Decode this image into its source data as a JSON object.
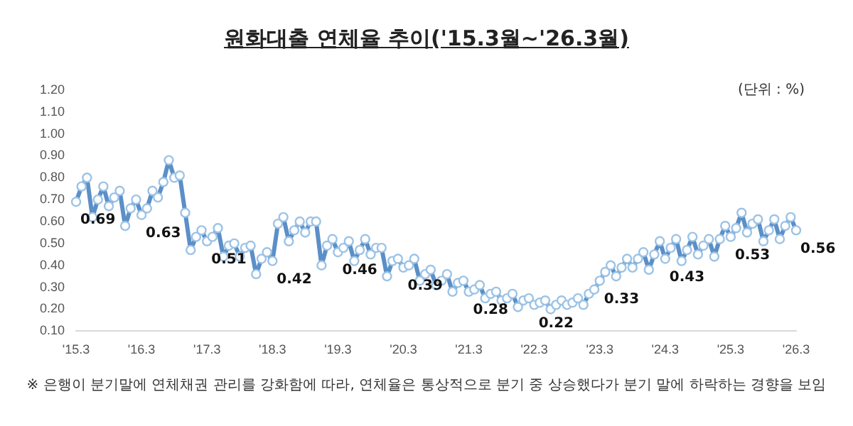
{
  "chart_data": {
    "type": "line",
    "title": "원화대출 연체율 추이('15.3월~'26.3월)",
    "annotations": [
      "(단위 : %)",
      "※ 은행이 분기말에 연체채권 관리를 강화함에 따라, 연체율은 통상적으로 분기 중 상승했다가 분기 말에 하락하는 경향을 보임"
    ],
    "categories": [
      "'15.3",
      null,
      null,
      null,
      null,
      null,
      null,
      null,
      null,
      null,
      null,
      null,
      "'16.3",
      null,
      null,
      null,
      null,
      null,
      null,
      null,
      null,
      null,
      null,
      null,
      "'17.3",
      null,
      null,
      null,
      null,
      null,
      null,
      null,
      null,
      null,
      null,
      null,
      "'18.3",
      null,
      null,
      null,
      null,
      null,
      null,
      null,
      null,
      null,
      null,
      null,
      "'19.3",
      null,
      null,
      null,
      null,
      null,
      null,
      null,
      null,
      null,
      null,
      null,
      "'20.3",
      null,
      null,
      null,
      null,
      null,
      null,
      null,
      null,
      null,
      null,
      null,
      "'21.3",
      null,
      null,
      null,
      null,
      null,
      null,
      null,
      null,
      null,
      null,
      null,
      "'22.3",
      null,
      null,
      null,
      null,
      null,
      null,
      null,
      null,
      null,
      null,
      null,
      "'23.3",
      null,
      null,
      null,
      null,
      null,
      null,
      null,
      null,
      null,
      null,
      null,
      "'24.3",
      null,
      null,
      null,
      null,
      null,
      null,
      null,
      null,
      null,
      null,
      null,
      "'25.3",
      null,
      null,
      null,
      null,
      null,
      null,
      null,
      null,
      null,
      null,
      null,
      "'26.3"
    ],
    "series": [
      {
        "color": "#5b8fc7",
        "values": [
          0.69,
          0.76,
          0.8,
          0.62,
          0.7,
          0.76,
          0.67,
          0.71,
          0.74,
          0.58,
          0.66,
          0.7,
          0.63,
          0.66,
          0.74,
          0.71,
          0.78,
          0.88,
          0.8,
          0.81,
          0.64,
          0.47,
          0.53,
          0.56,
          0.51,
          0.53,
          0.57,
          0.44,
          0.49,
          0.5,
          0.44,
          0.48,
          0.49,
          0.36,
          0.43,
          0.46,
          0.42,
          0.59,
          0.62,
          0.51,
          0.56,
          0.6,
          0.55,
          0.6,
          0.6,
          0.4,
          0.49,
          0.52,
          0.46,
          0.48,
          0.51,
          0.42,
          0.47,
          0.52,
          0.45,
          0.48,
          0.48,
          0.35,
          0.42,
          0.43,
          0.39,
          0.4,
          0.43,
          0.33,
          0.36,
          0.38,
          0.31,
          0.33,
          0.36,
          0.28,
          0.32,
          0.33,
          0.28,
          0.29,
          0.31,
          0.25,
          0.27,
          0.28,
          0.24,
          0.25,
          0.27,
          0.21,
          0.24,
          0.25,
          0.22,
          0.23,
          0.24,
          0.2,
          0.22,
          0.24,
          0.22,
          0.23,
          0.25,
          0.22,
          0.27,
          0.29,
          0.33,
          0.37,
          0.4,
          0.35,
          0.39,
          0.43,
          0.39,
          0.43,
          0.46,
          0.38,
          0.45,
          0.51,
          0.43,
          0.48,
          0.52,
          0.42,
          0.47,
          0.53,
          0.45,
          0.49,
          0.52,
          0.44,
          0.52,
          0.58,
          0.53,
          0.57,
          0.64,
          0.55,
          0.59,
          0.61,
          0.51,
          0.56,
          0.61,
          0.52,
          0.58,
          0.62,
          0.56
        ],
        "value_labels": [
          "0.69",
          null,
          null,
          null,
          null,
          null,
          null,
          null,
          null,
          null,
          null,
          null,
          "0.63",
          null,
          null,
          null,
          null,
          null,
          null,
          null,
          null,
          null,
          null,
          null,
          "0.51",
          null,
          null,
          null,
          null,
          null,
          null,
          null,
          null,
          null,
          null,
          null,
          "0.42",
          null,
          null,
          null,
          null,
          null,
          null,
          null,
          null,
          null,
          null,
          null,
          "0.46",
          null,
          null,
          null,
          null,
          null,
          null,
          null,
          null,
          null,
          null,
          null,
          "0.39",
          null,
          null,
          null,
          null,
          null,
          null,
          null,
          null,
          null,
          null,
          null,
          "0.28",
          null,
          null,
          null,
          null,
          null,
          null,
          null,
          null,
          null,
          null,
          null,
          "0.22",
          null,
          null,
          null,
          null,
          null,
          null,
          null,
          null,
          null,
          null,
          null,
          "0.33",
          null,
          null,
          null,
          null,
          null,
          null,
          null,
          null,
          null,
          null,
          null,
          "0.43",
          null,
          null,
          null,
          null,
          null,
          null,
          null,
          null,
          null,
          null,
          null,
          "0.53",
          null,
          null,
          null,
          null,
          null,
          null,
          null,
          null,
          null,
          null,
          null,
          "0.56"
        ]
      }
    ],
    "ylim": [
      0.1,
      1.2
    ],
    "yticks": [
      {
        "value": 0.1,
        "label": "0.10"
      },
      {
        "value": 0.2,
        "label": "0.20"
      },
      {
        "value": 0.3,
        "label": "0.30"
      },
      {
        "value": 0.4,
        "label": "0.40"
      },
      {
        "value": 0.5,
        "label": "0.50"
      },
      {
        "value": 0.6,
        "label": "0.60"
      },
      {
        "value": 0.7,
        "label": "0.70"
      },
      {
        "value": 0.8,
        "label": "0.80"
      },
      {
        "value": 0.9,
        "label": "0.90"
      },
      {
        "value": 1.0,
        "label": "1.00"
      },
      {
        "value": 1.1,
        "label": "1.10"
      },
      {
        "value": 1.2,
        "label": "1.20"
      }
    ],
    "grid": false,
    "legend": false,
    "marker": "circle",
    "line_style": "solid"
  }
}
